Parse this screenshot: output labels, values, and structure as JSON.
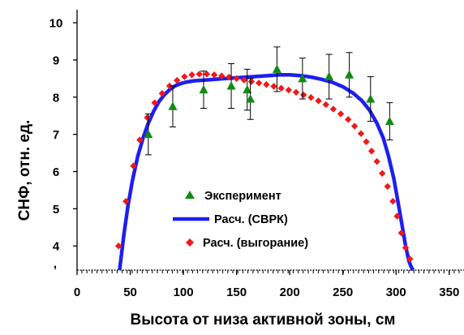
{
  "chart_data": {
    "type": "scatter",
    "xlabel": "Высота от низа активной зоны, см",
    "ylabel": "СНФ, отн. ед.",
    "xlim": [
      0,
      370
    ],
    "ylim": [
      3.35,
      10.35
    ],
    "x_ticks": [
      0,
      50,
      100,
      150,
      200,
      250,
      300,
      350
    ],
    "y_ticks": [
      4,
      5,
      6,
      7,
      8,
      9,
      10
    ],
    "bottom_axis_y": 3.35,
    "corner_mark": ",",
    "grid": false,
    "legend_position": "lower-center",
    "series": [
      {
        "name": "Эксперимент",
        "kind": "triangle-marker",
        "color": "#138a13",
        "x": [
          67,
          90,
          119,
          145,
          160,
          163,
          188,
          212,
          237,
          256,
          276,
          294
        ],
        "y": [
          7.0,
          7.75,
          8.2,
          8.3,
          8.2,
          7.95,
          8.75,
          8.5,
          8.55,
          8.6,
          7.95,
          7.35
        ],
        "err": [
          0.55,
          0.55,
          0.5,
          0.6,
          0.55,
          0.55,
          0.6,
          0.55,
          0.6,
          0.6,
          0.6,
          0.5
        ]
      },
      {
        "name": "Расч. (СВРК)",
        "kind": "line",
        "color": "#1e1ef0",
        "x": [
          40,
          44,
          48,
          52,
          57,
          62,
          67,
          72,
          77,
          82,
          87,
          92,
          97,
          102,
          110,
          120,
          130,
          140,
          150,
          160,
          170,
          180,
          190,
          200,
          210,
          220,
          230,
          240,
          250,
          260,
          268,
          275,
          282,
          288,
          293,
          298,
          302,
          306,
          309,
          312,
          314,
          316
        ],
        "y": [
          3.35,
          4.3,
          5.1,
          5.75,
          6.4,
          6.9,
          7.3,
          7.62,
          7.88,
          8.06,
          8.2,
          8.3,
          8.36,
          8.4,
          8.44,
          8.46,
          8.48,
          8.5,
          8.52,
          8.54,
          8.56,
          8.58,
          8.6,
          8.6,
          8.58,
          8.54,
          8.48,
          8.4,
          8.28,
          8.1,
          7.9,
          7.65,
          7.3,
          6.9,
          6.4,
          5.8,
          5.15,
          4.5,
          4.0,
          3.6,
          3.45,
          3.35
        ]
      },
      {
        "name": "Расч. (выгорание)",
        "kind": "diamond-marker",
        "color": "#f01818",
        "x": [
          39,
          46,
          53,
          59,
          66,
          73,
          80,
          87,
          94,
          101,
          108,
          115,
          122,
          129,
          136,
          143,
          150,
          157,
          164,
          171,
          178,
          185,
          192,
          199,
          206,
          213,
          220,
          227,
          234,
          241,
          248,
          255,
          261,
          267,
          272,
          277,
          282,
          287,
          292,
          297,
          301,
          305,
          309,
          313
        ],
        "y": [
          4.0,
          5.2,
          6.15,
          6.85,
          7.45,
          7.85,
          8.1,
          8.3,
          8.45,
          8.55,
          8.6,
          8.62,
          8.62,
          8.6,
          8.57,
          8.54,
          8.5,
          8.46,
          8.42,
          8.38,
          8.34,
          8.29,
          8.24,
          8.19,
          8.13,
          8.06,
          7.99,
          7.9,
          7.8,
          7.68,
          7.55,
          7.4,
          7.22,
          7.02,
          6.8,
          6.55,
          6.27,
          5.95,
          5.6,
          5.2,
          4.8,
          4.35,
          3.95,
          3.65
        ]
      }
    ]
  }
}
